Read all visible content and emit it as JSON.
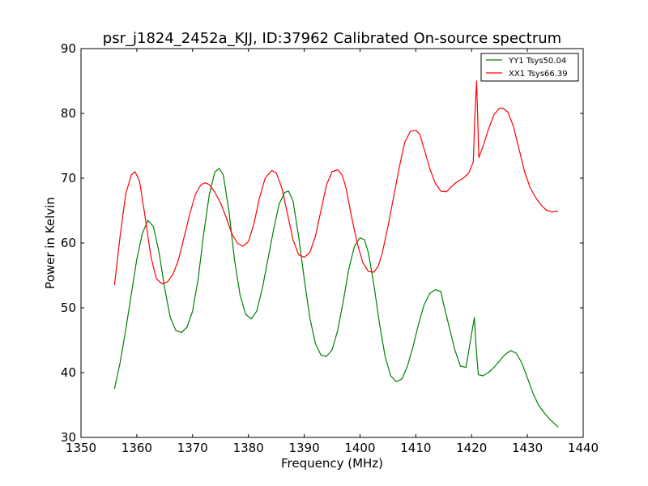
{
  "chart_data": {
    "type": "line",
    "title": "psr_j1824_2452a_KJJ, ID:37962 Calibrated On-source spectrum",
    "xlabel": "Frequency (MHz)",
    "ylabel": "Power in Kelvin",
    "xlim": [
      1350,
      1440
    ],
    "ylim": [
      30,
      90
    ],
    "xticks": [
      1350,
      1360,
      1370,
      1380,
      1390,
      1400,
      1410,
      1420,
      1430,
      1440
    ],
    "yticks": [
      30,
      40,
      50,
      60,
      70,
      80,
      90
    ],
    "grid": false,
    "legend_position": "top-right",
    "series": [
      {
        "name": "YY1 Tsys50.04",
        "color": "#008000",
        "x": [
          1356,
          1357,
          1358,
          1359,
          1360,
          1361,
          1362,
          1363,
          1364,
          1365,
          1366,
          1367,
          1368,
          1369,
          1370,
          1371,
          1372,
          1373,
          1374,
          1374.8,
          1375.5,
          1376.5,
          1377.5,
          1378.5,
          1379.5,
          1380.5,
          1381.5,
          1382.5,
          1383.5,
          1384.5,
          1385.5,
          1386.5,
          1387.2,
          1388,
          1389,
          1390,
          1391,
          1392,
          1393,
          1394,
          1395,
          1396,
          1397,
          1398,
          1399,
          1400,
          1400.8,
          1401.5,
          1402.5,
          1403.5,
          1404.5,
          1405.5,
          1406.5,
          1407.5,
          1408.5,
          1409.5,
          1410.5,
          1411.5,
          1412.5,
          1413.5,
          1414.5,
          1415,
          1416,
          1417,
          1418,
          1419,
          1420,
          1420.5,
          1420.8,
          1421.2,
          1422,
          1423,
          1424,
          1425,
          1426,
          1427,
          1428,
          1429,
          1430,
          1431,
          1432,
          1433,
          1434,
          1435.5
        ],
        "values": [
          37.5,
          41.5,
          46.5,
          52,
          57.5,
          61.5,
          63.5,
          62.5,
          58.5,
          53,
          48.5,
          46.5,
          46.2,
          47,
          49.5,
          54.5,
          61.5,
          67.5,
          71,
          71.5,
          70.5,
          65,
          57.5,
          52,
          49,
          48.3,
          49.5,
          53,
          57.5,
          62,
          66,
          67.8,
          68,
          66.5,
          61,
          54.5,
          48.5,
          44.5,
          42.7,
          42.5,
          43.5,
          46.5,
          51,
          56,
          59.5,
          60.8,
          60.5,
          58.5,
          53.5,
          47.5,
          42.5,
          39.5,
          38.6,
          39,
          41,
          44,
          47.5,
          50.5,
          52.2,
          52.8,
          52.5,
          50.5,
          47,
          43.5,
          41,
          40.8,
          46,
          48.5,
          44,
          39.7,
          39.5,
          40,
          40.8,
          41.8,
          42.8,
          43.4,
          43,
          41.5,
          39.2,
          36.8,
          35,
          33.8,
          32.8,
          31.6
        ]
      },
      {
        "name": "XX1 Tsys66.39",
        "color": "#ff0000",
        "x": [
          1356,
          1357,
          1358,
          1359,
          1359.7,
          1360.5,
          1361.5,
          1362.5,
          1363.5,
          1364.5,
          1365.5,
          1366.5,
          1367.5,
          1368.5,
          1369.5,
          1370.5,
          1371.5,
          1372.3,
          1373,
          1374,
          1375,
          1376,
          1377,
          1378,
          1379,
          1380,
          1381,
          1382,
          1383,
          1384.2,
          1385,
          1386,
          1387,
          1388,
          1389,
          1390,
          1391,
          1392,
          1393,
          1394,
          1395,
          1396,
          1396.8,
          1397.5,
          1398.5,
          1399.5,
          1400.5,
          1401.5,
          1402.5,
          1403.3,
          1404,
          1405,
          1406,
          1407,
          1408,
          1409,
          1410,
          1410.7,
          1411.5,
          1412.5,
          1413.5,
          1414.5,
          1415.5,
          1416.5,
          1417.5,
          1418.5,
          1419.5,
          1420.3,
          1420.6,
          1420.9,
          1421.3,
          1422,
          1423,
          1424,
          1425,
          1425.6,
          1426.5,
          1427.5,
          1428.5,
          1429.5,
          1430.5,
          1431.5,
          1432.5,
          1433.5,
          1434.5,
          1435.5
        ],
        "values": [
          53.5,
          61,
          67.5,
          70.5,
          71,
          69.5,
          64,
          58,
          54.5,
          53.7,
          54,
          55.2,
          57.5,
          61,
          64.5,
          67.5,
          69,
          69.3,
          69,
          67.8,
          66.2,
          64,
          61.5,
          60,
          59.5,
          60.2,
          63,
          67,
          70,
          71.2,
          70.8,
          68.5,
          64.5,
          60.5,
          58.2,
          57.8,
          58.5,
          61,
          65,
          69,
          71,
          71.3,
          70.5,
          68.5,
          64,
          60,
          57,
          55.6,
          55.5,
          56.5,
          58.5,
          62.5,
          67,
          71.5,
          75.5,
          77.2,
          77.4,
          76.8,
          74.5,
          71.5,
          69.2,
          68,
          67.9,
          68.8,
          69.5,
          70,
          70.8,
          72.5,
          80,
          85,
          73.2,
          74.8,
          77.5,
          79.8,
          80.8,
          80.8,
          80.2,
          78,
          74.5,
          71,
          68.5,
          67,
          65.8,
          65,
          64.8,
          64.9
        ]
      }
    ]
  }
}
